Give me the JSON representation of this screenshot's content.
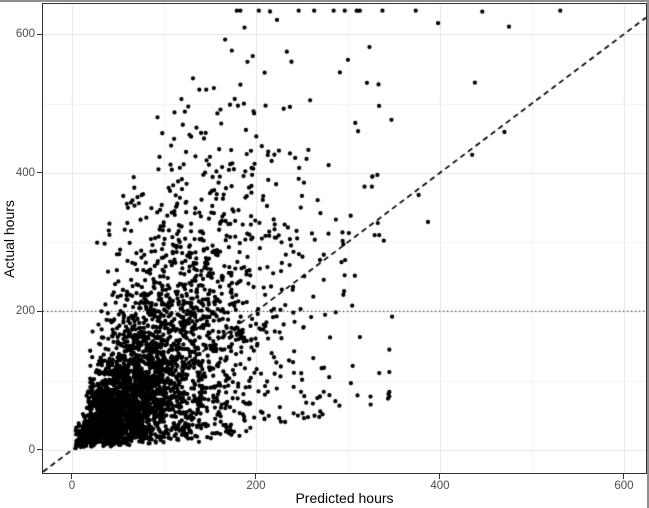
{
  "figure": {
    "background": "#ffffff",
    "frame_border_color": "#8f8f8f"
  },
  "chart_data": {
    "type": "scatter",
    "title": "",
    "xlabel": "Predicted hours",
    "ylabel": "Actual hours",
    "xlim": [
      -31.5,
      624
    ],
    "ylim": [
      -33.2,
      643.6
    ],
    "x_ticks": [
      0,
      200,
      400,
      600
    ],
    "y_ticks": [
      0,
      200,
      400,
      600
    ],
    "x_minor_ticks": [
      100,
      300,
      500
    ],
    "y_minor_ticks": [
      100,
      300,
      500
    ],
    "grid": "major+minor",
    "legend": "none",
    "point_color": "#000000",
    "point_radius": 2.15,
    "reference_lines": [
      {
        "kind": "hline",
        "y": 200,
        "style": "dotted",
        "color": "#444444",
        "width": 1.1,
        "dash": [
          1.2,
          2.8
        ]
      },
      {
        "kind": "identity",
        "slope": 1,
        "intercept": 0,
        "style": "dashed",
        "color": "#000000",
        "width": 1.7,
        "dash": [
          5.5,
          4
        ]
      }
    ],
    "outlier_points": [
      [
        398,
        616
      ],
      [
        300,
        563
      ],
      [
        438,
        530
      ],
      [
        308,
        472
      ],
      [
        311,
        460
      ],
      [
        93,
        480
      ],
      [
        111,
        449
      ],
      [
        124,
        430
      ],
      [
        150,
        423
      ],
      [
        160,
        434
      ],
      [
        157,
        402
      ],
      [
        190,
        427
      ],
      [
        197,
        406
      ],
      [
        225,
        432
      ],
      [
        237,
        428
      ],
      [
        257,
        433
      ],
      [
        255,
        420
      ],
      [
        247,
        407
      ],
      [
        279,
        411
      ],
      [
        435,
        426
      ],
      [
        332,
        397
      ],
      [
        318,
        380
      ],
      [
        326,
        380
      ],
      [
        303,
        338
      ],
      [
        294,
        314
      ],
      [
        301,
        313
      ],
      [
        329,
        310
      ],
      [
        334,
        310
      ],
      [
        339,
        302
      ],
      [
        295,
        297
      ],
      [
        387,
        329
      ],
      [
        297,
        274
      ],
      [
        293,
        271
      ],
      [
        295,
        224
      ],
      [
        313,
        163
      ],
      [
        334,
        111
      ],
      [
        241,
        91
      ],
      [
        249,
        84
      ],
      [
        226,
        62
      ]
    ],
    "cloud_model": {
      "note": "dense right-skewed predicted-vs-actual cloud, ~3460 points, generated deterministically from these parameters",
      "seed": 42,
      "envelope": {
        "floor_slope": 0.3,
        "floor_x0": 115,
        "floor_jitter": 15,
        "cap_a": 250,
        "cap_b": 2.2
      },
      "clamp": {
        "xmin": 0.3,
        "xmax": 610,
        "ymin": 0.3,
        "ymax": 634
      },
      "components": [
        {
          "n": 2400,
          "x0": 2,
          "xs": 40,
          "y0": 0,
          "k": 1,
          "mu": -0.05,
          "sigma": 0.6,
          "yexp": 8
        },
        {
          "n": 700,
          "x0": 12,
          "xs": 42,
          "y0": 40,
          "k": 1,
          "mu": 0.25,
          "sigma": 0.5,
          "yexp": 20,
          "xcap": 400
        },
        {
          "n": 300,
          "x0": 20,
          "xs": 52,
          "y0": 0,
          "k": 0.18,
          "mu": 0,
          "sigma": 0.5,
          "yexp": 12,
          "xcap": 345
        },
        {
          "n": 60,
          "x0": 18,
          "xs": 48,
          "y0": 270,
          "k": 0,
          "mu": 0,
          "sigma": 0,
          "yexp": 75,
          "xcap": 330,
          "ycap": 520
        }
      ]
    },
    "colors": {
      "grid_major": "#e4e4e4",
      "grid_minor": "#f2f2f2",
      "panel_border": "#333333",
      "tick_mark": "#333333",
      "tick_label": "#4d4d4d",
      "axis_title": "#000000"
    }
  }
}
